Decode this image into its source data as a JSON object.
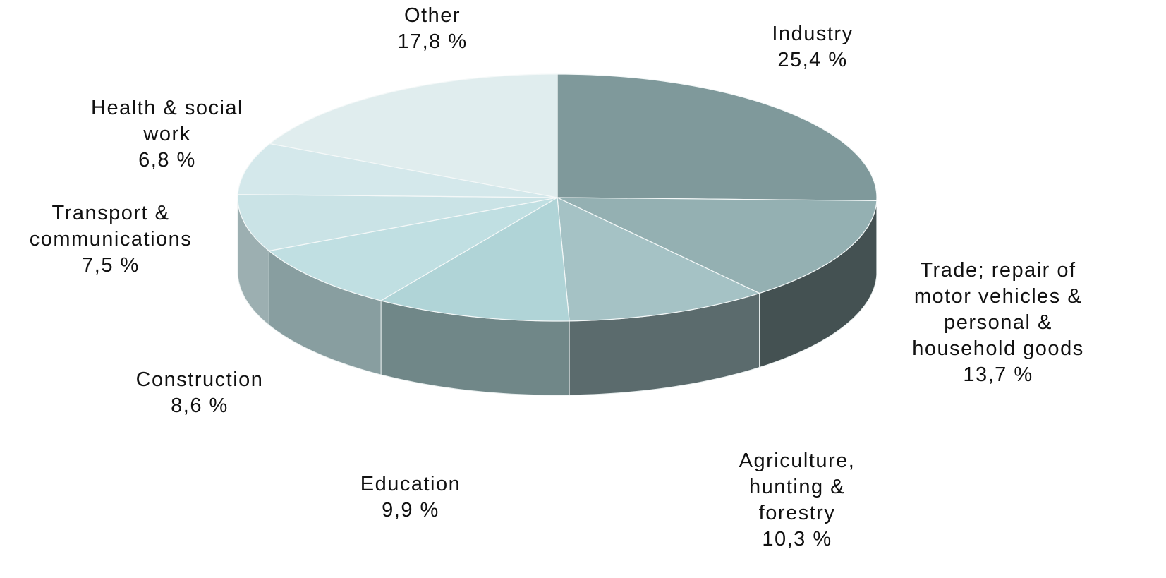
{
  "chart_data": {
    "type": "pie3d",
    "categories": [
      "Industry",
      "Trade; repair of motor vehicles & personal & household goods",
      "Agriculture, hunting & forestry",
      "Education",
      "Construction",
      "Transport & communications",
      "Health & social work",
      "Other"
    ],
    "values": [
      25.4,
      13.7,
      10.3,
      9.9,
      8.6,
      7.5,
      6.8,
      17.8
    ],
    "value_labels": [
      "25,4 %",
      "13,7 %",
      "10,3 %",
      "9,9 %",
      "8,6 %",
      "7,5 %",
      "6,8 %",
      "17,8 %"
    ],
    "colors": [
      "#7f999b",
      "#94b0b2",
      "#a5c2c5",
      "#b0d4d7",
      "#c0dfe2",
      "#cae3e6",
      "#d4e8eb",
      "#e0edee"
    ]
  }
}
